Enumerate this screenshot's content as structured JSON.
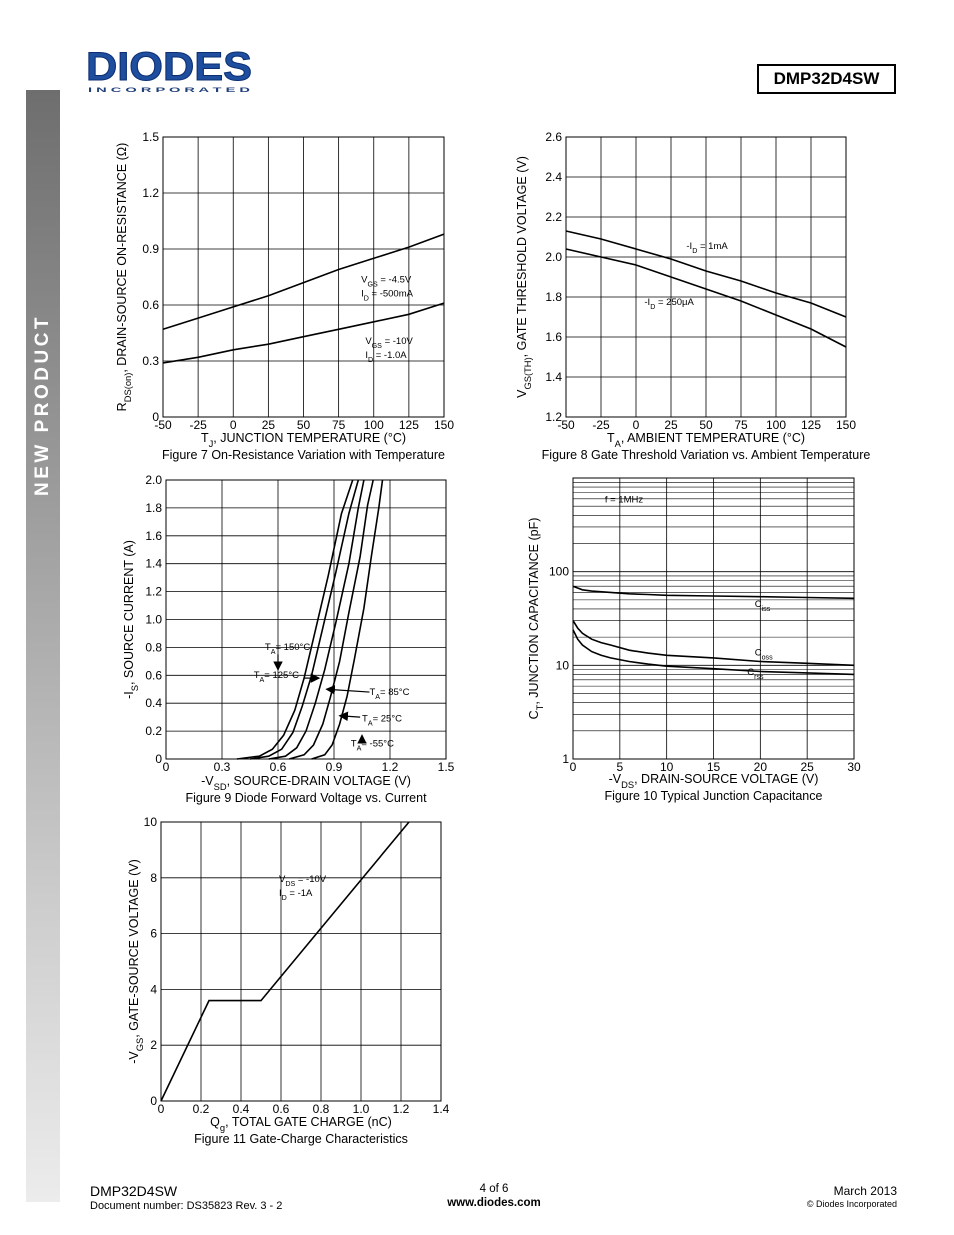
{
  "header": {
    "logo_text": "DIODES",
    "logo_sub": "I N C O R P O R A T E D",
    "part_number": "DMP32D4SW",
    "sidebar_label": "NEW PRODUCT"
  },
  "footer": {
    "part": "DMP32D4SW",
    "document": "Document number: DS35823 Rev. 3 - 2",
    "page": "4 of 6",
    "website": "www.diodes.com",
    "date": "March 2013",
    "copyright": "© Diodes Incorporated"
  },
  "chart_data": [
    {
      "id": "fig7",
      "type": "line",
      "title": "Figure 7 On-Resistance Variation with Temperature",
      "xlabel_parts": [
        [
          "T",
          ""
        ],
        [
          "J",
          "sub"
        ],
        [
          ", JUNCTION TEMPERATURE (°C)",
          ""
        ]
      ],
      "ylabel_parts": [
        [
          "R",
          ""
        ],
        [
          "DS(on)",
          "sub"
        ],
        [
          ", DRAIN-SOURCE ON-RESISTANCE (Ω)",
          ""
        ]
      ],
      "xlim": [
        -50,
        150
      ],
      "ylim": [
        0,
        1.5
      ],
      "xticks": [
        -50,
        -25,
        0,
        25,
        50,
        75,
        100,
        125,
        150
      ],
      "yticks": [
        0,
        0.3,
        0.6,
        0.9,
        1.2,
        1.5
      ],
      "xticklabels": [
        "-50",
        "-25",
        "0",
        "25",
        "50",
        "75",
        "100",
        "125",
        "150"
      ],
      "yticklabels": [
        "0",
        "0.3",
        "0.6",
        "0.9",
        "1.2",
        "1.5"
      ],
      "series": [
        {
          "x": [
            -50,
            -25,
            0,
            25,
            50,
            75,
            100,
            125,
            150
          ],
          "y": [
            0.47,
            0.53,
            0.59,
            0.65,
            0.72,
            0.79,
            0.85,
            0.91,
            0.98
          ]
        },
        {
          "x": [
            -50,
            -25,
            0,
            25,
            50,
            75,
            100,
            125,
            150
          ],
          "y": [
            0.29,
            0.32,
            0.36,
            0.39,
            0.43,
            0.47,
            0.51,
            0.55,
            0.61
          ]
        }
      ],
      "annotations": [
        {
          "x": 91,
          "y": 0.72,
          "parts": [
            [
              "V",
              ""
            ],
            [
              "GS",
              "sub"
            ],
            [
              " = -4.5V",
              ""
            ]
          ]
        },
        {
          "x": 91,
          "y": 0.645,
          "parts": [
            [
              "I",
              ""
            ],
            [
              "D",
              "sub"
            ],
            [
              " = -500mA",
              ""
            ]
          ]
        },
        {
          "x": 94,
          "y": 0.39,
          "parts": [
            [
              "V",
              ""
            ],
            [
              "GS",
              "sub"
            ],
            [
              " = -10V",
              ""
            ]
          ]
        },
        {
          "x": 94,
          "y": 0.315,
          "parts": [
            [
              "I",
              ""
            ],
            [
              "D",
              "sub"
            ],
            [
              " = -1.0A",
              ""
            ]
          ]
        }
      ]
    },
    {
      "id": "fig8",
      "type": "line",
      "title": "Figure 8 Gate Threshold Variation vs. Ambient Temperature",
      "xlabel_parts": [
        [
          "T",
          ""
        ],
        [
          "A",
          "sub"
        ],
        [
          ", AMBIENT TEMPERATURE (°C)",
          ""
        ]
      ],
      "ylabel_parts": [
        [
          "V",
          ""
        ],
        [
          "GS(TH)",
          "sub"
        ],
        [
          ", GATE THRESHOLD VOLTAGE (V)",
          ""
        ]
      ],
      "xlim": [
        -50,
        150
      ],
      "ylim": [
        1.2,
        2.6
      ],
      "xticks": [
        -50,
        -25,
        0,
        25,
        50,
        75,
        100,
        125,
        150
      ],
      "yticks": [
        1.2,
        1.4,
        1.6,
        1.8,
        2.0,
        2.2,
        2.4,
        2.6
      ],
      "xticklabels": [
        "-50",
        "-25",
        "0",
        "25",
        "50",
        "75",
        "100",
        "125",
        "150"
      ],
      "yticklabels": [
        "1.2",
        "1.4",
        "1.6",
        "1.8",
        "2.0",
        "2.2",
        "2.4",
        "2.6"
      ],
      "series": [
        {
          "x": [
            -50,
            -25,
            0,
            25,
            50,
            75,
            100,
            125,
            150
          ],
          "y": [
            2.13,
            2.09,
            2.04,
            1.99,
            1.93,
            1.88,
            1.82,
            1.77,
            1.7
          ]
        },
        {
          "x": [
            -50,
            -25,
            0,
            25,
            50,
            75,
            100,
            125,
            150
          ],
          "y": [
            2.04,
            2.0,
            1.96,
            1.9,
            1.84,
            1.78,
            1.71,
            1.64,
            1.55
          ]
        }
      ],
      "annotations": [
        {
          "x": 36,
          "y": 2.04,
          "parts": [
            [
              "-I",
              ""
            ],
            [
              "D",
              "sub"
            ],
            [
              " = 1mA",
              ""
            ]
          ]
        },
        {
          "x": 6,
          "y": 1.76,
          "parts": [
            [
              "-I",
              ""
            ],
            [
              "D",
              "sub"
            ],
            [
              " = 250μA",
              ""
            ]
          ]
        }
      ]
    },
    {
      "id": "fig9",
      "type": "line",
      "title": "Figure 9 Diode Forward Voltage vs. Current",
      "xlabel_parts": [
        [
          "-V",
          ""
        ],
        [
          "SD",
          "sub"
        ],
        [
          ", SOURCE-DRAIN VOLTAGE (V)",
          ""
        ]
      ],
      "ylabel_parts": [
        [
          "-I",
          ""
        ],
        [
          "S",
          "sub"
        ],
        [
          ", SOURCE CURRENT (A)",
          ""
        ]
      ],
      "xlim": [
        0,
        1.5
      ],
      "ylim": [
        0,
        2.0
      ],
      "xticks": [
        0,
        0.3,
        0.6,
        0.9,
        1.2,
        1.5
      ],
      "yticks": [
        0,
        0.2,
        0.4,
        0.6,
        0.8,
        1.0,
        1.2,
        1.4,
        1.6,
        1.8,
        2.0
      ],
      "xticklabels": [
        "0",
        "0.3",
        "0.6",
        "0.9",
        "1.2",
        "1.5"
      ],
      "yticklabels": [
        "0",
        "0.2",
        "0.4",
        "0.6",
        "0.8",
        "1.0",
        "1.2",
        "1.4",
        "1.6",
        "1.8",
        "2.0"
      ],
      "series": [
        {
          "name": "150",
          "x": [
            0.38,
            0.5,
            0.57,
            0.63,
            0.69,
            0.74,
            0.8,
            0.87,
            0.94,
            1.0
          ],
          "y": [
            0,
            0.02,
            0.07,
            0.17,
            0.35,
            0.58,
            0.92,
            1.32,
            1.76,
            2.0
          ]
        },
        {
          "name": "125",
          "x": [
            0.45,
            0.55,
            0.62,
            0.68,
            0.73,
            0.78,
            0.84,
            0.91,
            0.98,
            1.03
          ],
          "y": [
            0,
            0.02,
            0.07,
            0.19,
            0.38,
            0.6,
            0.94,
            1.34,
            1.76,
            2.0
          ]
        },
        {
          "name": "85",
          "x": [
            0.55,
            0.64,
            0.7,
            0.75,
            0.8,
            0.85,
            0.91,
            0.98,
            1.03,
            1.06
          ],
          "y": [
            0,
            0.02,
            0.08,
            0.2,
            0.4,
            0.64,
            0.98,
            1.4,
            1.8,
            2.0
          ]
        },
        {
          "name": "25",
          "x": [
            0.66,
            0.74,
            0.79,
            0.84,
            0.88,
            0.93,
            0.98,
            1.04,
            1.08,
            1.11
          ],
          "y": [
            0,
            0.03,
            0.1,
            0.25,
            0.44,
            0.7,
            1.05,
            1.45,
            1.82,
            2.0
          ]
        },
        {
          "name": "-55",
          "x": [
            0.78,
            0.85,
            0.89,
            0.93,
            0.97,
            1.01,
            1.06,
            1.1,
            1.14,
            1.16
          ],
          "y": [
            0,
            0.03,
            0.1,
            0.25,
            0.45,
            0.72,
            1.08,
            1.45,
            1.8,
            2.0
          ]
        }
      ],
      "annotations": [
        {
          "x": 0.53,
          "y": 0.78,
          "parts": [
            [
              "T",
              ""
            ],
            [
              "A",
              "sub"
            ],
            [
              "= 150°C",
              ""
            ]
          ]
        },
        {
          "x": 0.47,
          "y": 0.58,
          "parts": [
            [
              "T",
              ""
            ],
            [
              "A",
              "sub"
            ],
            [
              "= 125°C",
              ""
            ]
          ]
        },
        {
          "x": 1.09,
          "y": 0.46,
          "parts": [
            [
              "T",
              ""
            ],
            [
              "A",
              "sub"
            ],
            [
              "= 85°C",
              ""
            ]
          ]
        },
        {
          "x": 1.05,
          "y": 0.27,
          "parts": [
            [
              "T",
              ""
            ],
            [
              "A",
              "sub"
            ],
            [
              "= 25°C",
              ""
            ]
          ]
        },
        {
          "x": 0.99,
          "y": 0.09,
          "parts": [
            [
              "T",
              ""
            ],
            [
              "A",
              "sub"
            ],
            [
              "= -55°C",
              ""
            ]
          ]
        }
      ]
    },
    {
      "id": "fig10",
      "type": "line",
      "yscale": "log",
      "title": "Figure 10 Typical Junction Capacitance",
      "xlabel_parts": [
        [
          "-V",
          ""
        ],
        [
          "DS",
          "sub"
        ],
        [
          ", DRAIN-SOURCE VOLTAGE (V)",
          ""
        ]
      ],
      "ylabel_parts": [
        [
          "C",
          ""
        ],
        [
          "T",
          "sub"
        ],
        [
          ", JUNCTION CAPACITANCE (pF)",
          ""
        ]
      ],
      "xlim": [
        0,
        30
      ],
      "ylim": [
        1,
        1000
      ],
      "xticks": [
        0,
        5,
        10,
        15,
        20,
        25,
        30
      ],
      "yticks": [
        1,
        10,
        100
      ],
      "xticklabels": [
        "0",
        "5",
        "10",
        "15",
        "20",
        "25",
        "30"
      ],
      "yticklabels": [
        "1",
        "10",
        "100"
      ],
      "series": [
        {
          "name": "Ciss",
          "x": [
            0,
            1,
            2,
            4,
            6,
            8,
            10,
            15,
            20,
            25,
            30
          ],
          "y": [
            70,
            64,
            62,
            60,
            58,
            57,
            56,
            55,
            54,
            53,
            52
          ]
        },
        {
          "name": "Coss",
          "x": [
            0,
            0.5,
            1,
            2,
            3,
            4,
            6,
            8,
            10,
            15,
            20,
            25,
            30
          ],
          "y": [
            30,
            25,
            22,
            19,
            17.5,
            16.5,
            14.5,
            13.5,
            12.8,
            12,
            11,
            10.5,
            10
          ]
        },
        {
          "name": "Crss",
          "x": [
            0,
            0.5,
            1,
            2,
            3,
            4,
            6,
            8,
            10,
            15,
            20,
            25,
            30
          ],
          "y": [
            24,
            19,
            16.5,
            14,
            12.8,
            12,
            11,
            10.3,
            9.8,
            9.2,
            8.6,
            8.3,
            8.0
          ]
        }
      ],
      "annotations": [
        {
          "x": 3.4,
          "y": 545,
          "parts": [
            [
              "f = 1MHz",
              ""
            ]
          ]
        },
        {
          "x": 19.4,
          "y": 42,
          "parts": [
            [
              "C",
              ""
            ],
            [
              "iss",
              "sub"
            ]
          ]
        },
        {
          "x": 19.4,
          "y": 12.8,
          "parts": [
            [
              "C",
              ""
            ],
            [
              "oss",
              "sub"
            ]
          ]
        },
        {
          "x": 18.6,
          "y": 7.9,
          "parts": [
            [
              "C",
              ""
            ],
            [
              "rss",
              "sub"
            ]
          ]
        }
      ]
    },
    {
      "id": "fig11",
      "type": "line",
      "title": "Figure 11 Gate-Charge Characteristics",
      "xlabel_parts": [
        [
          "Q",
          ""
        ],
        [
          "g",
          "sub"
        ],
        [
          ", TOTAL GATE CHARGE (nC)",
          ""
        ]
      ],
      "ylabel_parts": [
        [
          "-V",
          ""
        ],
        [
          "GS",
          "sub"
        ],
        [
          ", GATE-SOURCE VOLTAGE (V)",
          ""
        ]
      ],
      "xlim": [
        0,
        1.4
      ],
      "ylim": [
        0,
        10
      ],
      "xticks": [
        0,
        0.2,
        0.4,
        0.6,
        0.8,
        1.0,
        1.2,
        1.4
      ],
      "yticks": [
        0,
        2,
        4,
        6,
        8,
        10
      ],
      "xticklabels": [
        "0",
        "0.2",
        "0.4",
        "0.6",
        "0.8",
        "1.0",
        "1.2",
        "1.4"
      ],
      "yticklabels": [
        "0",
        "2",
        "4",
        "6",
        "8",
        "10"
      ],
      "series": [
        {
          "x": [
            0,
            0.24,
            0.5,
            1.24
          ],
          "y": [
            0,
            3.6,
            3.6,
            10
          ]
        }
      ],
      "annotations": [
        {
          "x": 0.59,
          "y": 7.85,
          "parts": [
            [
              "V",
              ""
            ],
            [
              "DS",
              "sub"
            ],
            [
              " = -10V",
              ""
            ]
          ]
        },
        {
          "x": 0.59,
          "y": 7.35,
          "parts": [
            [
              "I",
              ""
            ],
            [
              "D",
              "sub"
            ],
            [
              " = -1A",
              ""
            ]
          ]
        }
      ]
    }
  ]
}
